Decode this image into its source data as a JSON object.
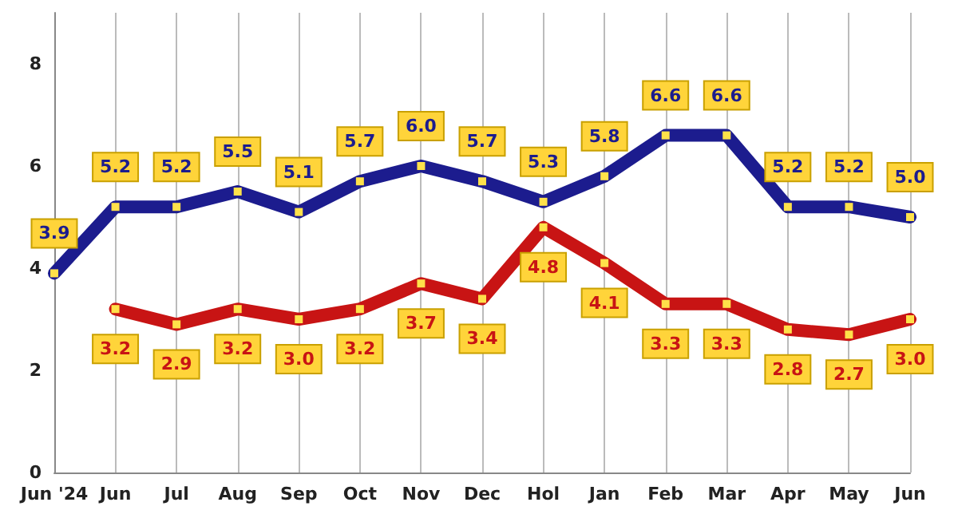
{
  "chart_data": {
    "type": "line",
    "categories": [
      "Jun '24",
      "Jun",
      "Jul",
      "Aug",
      "Sep",
      "Oct",
      "Nov",
      "Dec",
      "Hol",
      "Jan",
      "Feb",
      "Mar",
      "Apr",
      "May",
      "Jun"
    ],
    "series": [
      {
        "color": "#1c1c8e",
        "values": [
          3.9,
          5.2,
          5.2,
          5.5,
          5.1,
          5.7,
          6.0,
          5.7,
          5.3,
          5.8,
          6.6,
          6.6,
          5.2,
          5.2,
          5.0
        ],
        "value_labels": [
          "3.9",
          "5.2",
          "5.2",
          "5.5",
          "5.1",
          "5.7",
          "6.0",
          "5.7",
          "5.3",
          "5.8",
          "6.6",
          "6.6",
          "5.2",
          "5.2",
          "5.0"
        ]
      },
      {
        "color": "#c81414",
        "values": [
          null,
          3.2,
          2.9,
          3.2,
          3.0,
          3.2,
          3.7,
          3.4,
          4.8,
          4.1,
          3.3,
          3.3,
          2.8,
          2.7,
          3.0
        ],
        "value_labels": [
          null,
          "3.2",
          "2.9",
          "3.2",
          "3.0",
          "3.2",
          "3.7",
          "3.4",
          "4.8",
          "4.1",
          "3.3",
          "3.3",
          "2.8",
          "2.7",
          "3.0"
        ]
      }
    ],
    "ylim": [
      0,
      9
    ],
    "yticks": [
      0,
      2,
      4,
      6,
      8
    ],
    "grid": "x",
    "marker": "square",
    "line_style": "solid"
  }
}
